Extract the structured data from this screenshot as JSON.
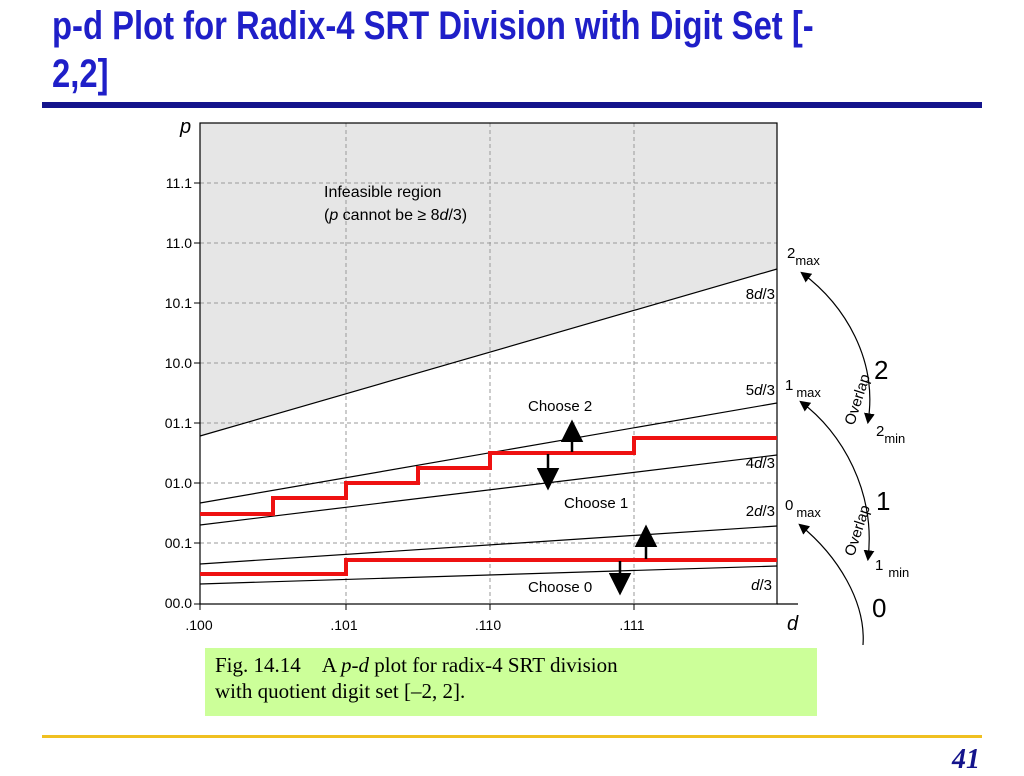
{
  "title_line1": "p-d Plot for Radix-4 SRT Division with Digit Set [-",
  "title_line2": "2,2]",
  "page_number": "41",
  "caption": {
    "fig": "Fig. 14.14",
    "pre": "A ",
    "italic": "p-d",
    "post": " plot for radix-4 SRT division",
    "line2": "with quotient digit set [–2, 2]."
  },
  "plot": {
    "y_axis_label": "p",
    "x_axis_label": "d",
    "y_ticks": [
      "11.1",
      "11.0",
      "10.1",
      "10.0",
      "01.1",
      "01.0",
      "00.1",
      "00.0"
    ],
    "x_ticks": [
      ".100",
      ".101",
      ".110",
      ".111"
    ],
    "infeasible_title": "Infeasible region",
    "infeasible_sub": {
      "open": "(",
      "p": "p",
      "mid": " cannot be ≥ 8",
      "d": "d",
      "close": "/3)"
    },
    "lines": [
      {
        "num": "8",
        "den": "/3"
      },
      {
        "num": "5",
        "den": "/3"
      },
      {
        "num": "4",
        "den": "/3"
      },
      {
        "num": "2",
        "den": "/3"
      },
      {
        "num": "",
        "den": "/3"
      }
    ],
    "line_var": "d",
    "choices": [
      "Choose 2",
      "Choose 1",
      "Choose 0"
    ],
    "bounds": [
      {
        "base": "2",
        "sub": "max"
      },
      {
        "base": "1",
        "sub": "max"
      },
      {
        "base": "0",
        "sub": "max"
      },
      {
        "base": "2",
        "sub": "min"
      },
      {
        "base": "1",
        "sub": "min"
      }
    ],
    "digits": [
      "2",
      "1",
      "0"
    ],
    "overlap_label": "Overlap"
  }
}
